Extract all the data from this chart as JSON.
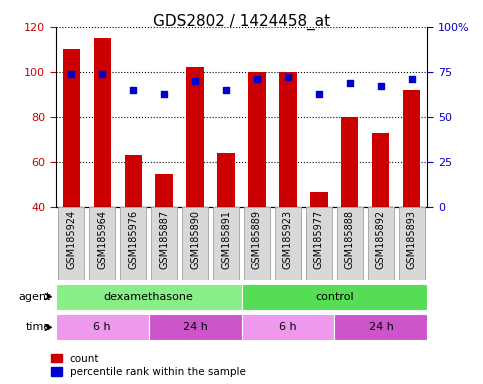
{
  "title": "GDS2802 / 1424458_at",
  "samples": [
    "GSM185924",
    "GSM185964",
    "GSM185976",
    "GSM185887",
    "GSM185890",
    "GSM185891",
    "GSM185889",
    "GSM185923",
    "GSM185977",
    "GSM185888",
    "GSM185892",
    "GSM185893"
  ],
  "count_values": [
    110,
    115,
    63,
    55,
    102,
    64,
    100,
    100,
    47,
    80,
    73,
    92
  ],
  "percentile_values": [
    74,
    74,
    65,
    63,
    70,
    65,
    71,
    72,
    63,
    69,
    67,
    71
  ],
  "ylim_left": [
    40,
    120
  ],
  "ylim_right": [
    0,
    100
  ],
  "yticks_left": [
    40,
    60,
    80,
    100,
    120
  ],
  "yticks_right": [
    0,
    25,
    50,
    75,
    100
  ],
  "yticklabels_right": [
    "0",
    "25",
    "50",
    "75",
    "100%"
  ],
  "bar_color": "#cc0000",
  "dot_color": "#0000cc",
  "bar_bottom": 40,
  "agent_groups": [
    {
      "label": "dexamethasone",
      "start": 0,
      "end": 6,
      "color": "#88ee88"
    },
    {
      "label": "control",
      "start": 6,
      "end": 12,
      "color": "#55dd55"
    }
  ],
  "time_groups": [
    {
      "label": "6 h",
      "start": 0,
      "end": 3,
      "color": "#ee99ee"
    },
    {
      "label": "24 h",
      "start": 3,
      "end": 6,
      "color": "#cc55cc"
    },
    {
      "label": "6 h",
      "start": 6,
      "end": 9,
      "color": "#ee99ee"
    },
    {
      "label": "24 h",
      "start": 9,
      "end": 12,
      "color": "#cc55cc"
    }
  ],
  "legend_count_label": "count",
  "legend_percentile_label": "percentile rank within the sample",
  "tick_label_color_left": "#cc0000",
  "tick_label_color_right": "#0000cc",
  "label_fontsize": 8,
  "tick_fontsize": 8,
  "title_fontsize": 11
}
